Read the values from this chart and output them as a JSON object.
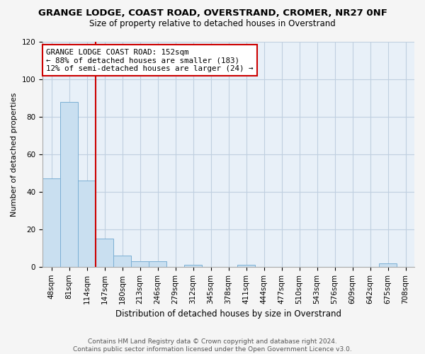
{
  "title": "GRANGE LODGE, COAST ROAD, OVERSTRAND, CROMER, NR27 0NF",
  "subtitle": "Size of property relative to detached houses in Overstrand",
  "xlabel": "Distribution of detached houses by size in Overstrand",
  "ylabel": "Number of detached properties",
  "bins": [
    "48sqm",
    "81sqm",
    "114sqm",
    "147sqm",
    "180sqm",
    "213sqm",
    "246sqm",
    "279sqm",
    "312sqm",
    "345sqm",
    "378sqm",
    "411sqm",
    "444sqm",
    "477sqm",
    "510sqm",
    "543sqm",
    "576sqm",
    "609sqm",
    "642sqm",
    "675sqm",
    "708sqm"
  ],
  "bar_heights": [
    47,
    88,
    46,
    15,
    6,
    3,
    3,
    0,
    1,
    0,
    0,
    1,
    0,
    0,
    0,
    0,
    0,
    0,
    0,
    2,
    0
  ],
  "bar_color": "#c9dff0",
  "bar_edge_color": "#7bafd4",
  "vline_color": "#cc0000",
  "vline_pos": 2.5,
  "annotation_text": "GRANGE LODGE COAST ROAD: 152sqm\n← 88% of detached houses are smaller (183)\n12% of semi-detached houses are larger (24) →",
  "annotation_box_color": "white",
  "annotation_box_edge_color": "#cc0000",
  "ylim": [
    0,
    120
  ],
  "yticks": [
    0,
    20,
    40,
    60,
    80,
    100,
    120
  ],
  "footer": "Contains HM Land Registry data © Crown copyright and database right 2024.\nContains public sector information licensed under the Open Government Licence v3.0.",
  "fig_bg_color": "#f5f5f5",
  "plot_bg_color": "#e8f0f8",
  "grid_color": "#c0cfe0",
  "title_fontsize": 9.5,
  "subtitle_fontsize": 8.5,
  "xlabel_fontsize": 8.5,
  "ylabel_fontsize": 8.0,
  "tick_fontsize": 7.5,
  "footer_fontsize": 6.5
}
